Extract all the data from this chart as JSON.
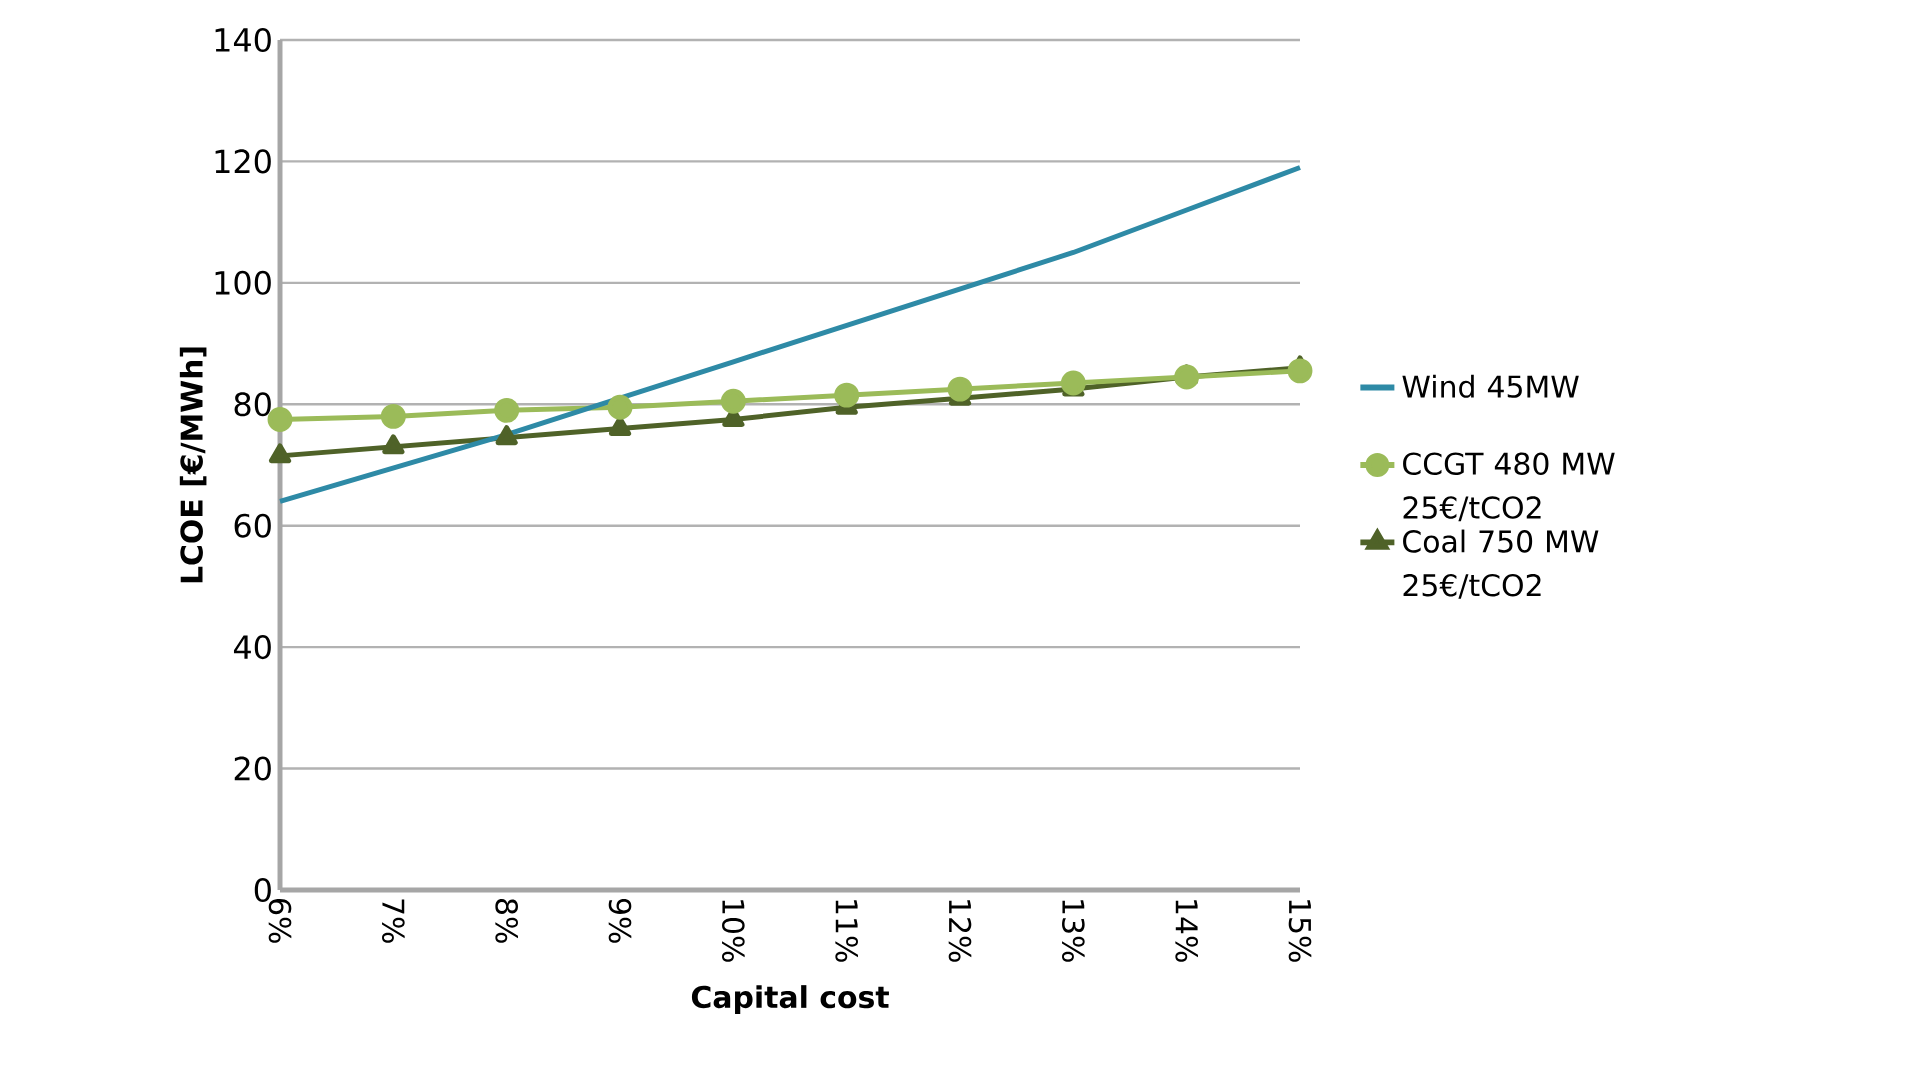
{
  "chart_data": {
    "type": "line",
    "xlabel": "Capital cost",
    "ylabel": "LCOE [€/MWh]",
    "categories": [
      "6%",
      "7%",
      "8%",
      "9%",
      "10%",
      "11%",
      "12%",
      "13%",
      "14%",
      "15%"
    ],
    "series": [
      {
        "name": "Wind 45MW",
        "color": "#2e8aa6",
        "marker": "none",
        "values": [
          64,
          69.5,
          75,
          81,
          87,
          93,
          99,
          105,
          112,
          119
        ]
      },
      {
        "name": "CCGT 480 MW 25€/tCO2",
        "color": "#9bbb59",
        "marker": "circle",
        "values": [
          77.5,
          78,
          79,
          79.5,
          80.5,
          81.5,
          82.5,
          83.5,
          84.5,
          85.5
        ]
      },
      {
        "name": "Coal 750 MW 25€/tCO2",
        "color": "#4f6228",
        "marker": "triangle",
        "values": [
          71.5,
          73,
          74.5,
          76,
          77.5,
          79.5,
          81,
          82.5,
          84.5,
          86
        ]
      }
    ],
    "ylim": [
      0,
      140
    ],
    "yticks": [
      0,
      20,
      40,
      60,
      80,
      100,
      120,
      140
    ],
    "grid": "y",
    "legend": "right"
  }
}
